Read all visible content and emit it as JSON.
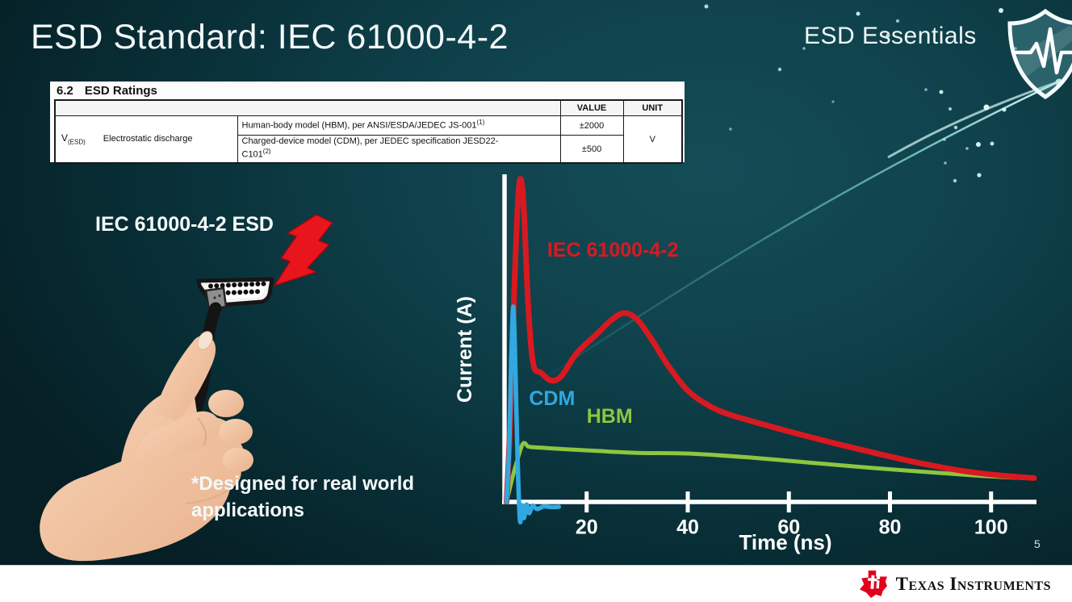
{
  "slide": {
    "title": "ESD Standard: IEC 61000-4-2",
    "brand_text": "ESD Essentials",
    "page_number": "5",
    "note_line1": "*Designed for real world",
    "note_line2": "applications",
    "illustration_label": "IEC 61000-4-2 ESD",
    "logo_company": "Texas Instruments"
  },
  "ratings_table": {
    "section_number": "6.2",
    "section_title": "ESD Ratings",
    "header_value": "VALUE",
    "header_unit": "UNIT",
    "symbol": "V",
    "symbol_sub": "(ESD)",
    "parameter": "Electrostatic discharge",
    "rows": [
      {
        "description": "Human-body model (HBM), per ANSI/ESDA/JEDEC JS-001",
        "footnote_ref": "(1)",
        "value": "±2000"
      },
      {
        "description": "Charged-device model (CDM), per JEDEC specification JESD22-C101",
        "footnote_ref": "(2)",
        "value": "±500"
      }
    ],
    "unit": "V"
  },
  "chart_data": {
    "type": "line",
    "title": "",
    "xlabel": "Time (ns)",
    "ylabel": "Current (A)",
    "x_ticks": [
      20,
      40,
      60,
      80,
      100
    ],
    "xlim": [
      0,
      110
    ],
    "ylim": [
      0,
      1
    ],
    "grid": false,
    "legend_position": "inline-labels",
    "axis_color": "#ffffff",
    "series": [
      {
        "name": "IEC 61000-4-2",
        "color": "#d91920",
        "width": 7,
        "z": 2,
        "label_t": 12.2,
        "label_v": 0.76,
        "points": [
          [
            4.15,
            0
          ],
          [
            4.8,
            0.22
          ],
          [
            5.6,
            0.62
          ],
          [
            6.4,
            0.93
          ],
          [
            7,
            1.0
          ],
          [
            7.6,
            0.9
          ],
          [
            8.4,
            0.62
          ],
          [
            9.4,
            0.43
          ],
          [
            11,
            0.4
          ],
          [
            13,
            0.376
          ],
          [
            15,
            0.39
          ],
          [
            18,
            0.46
          ],
          [
            22,
            0.52
          ],
          [
            25,
            0.565
          ],
          [
            27.5,
            0.585
          ],
          [
            30,
            0.565
          ],
          [
            33,
            0.5
          ],
          [
            36,
            0.425
          ],
          [
            40,
            0.345
          ],
          [
            44,
            0.3
          ],
          [
            48,
            0.272
          ],
          [
            55,
            0.24
          ],
          [
            62,
            0.21
          ],
          [
            70,
            0.178
          ],
          [
            78,
            0.148
          ],
          [
            86,
            0.12
          ],
          [
            94,
            0.097
          ],
          [
            100,
            0.085
          ],
          [
            105,
            0.078
          ],
          [
            108.5,
            0.074
          ]
        ]
      },
      {
        "name": "CDM",
        "color": "#31a8e0",
        "width": 5.5,
        "z": 3,
        "label_t": 8.6,
        "label_v": 0.3,
        "points": [
          [
            4.15,
            0
          ],
          [
            4.7,
            0.18
          ],
          [
            5.1,
            0.45
          ],
          [
            5.5,
            0.605
          ],
          [
            5.9,
            0.42
          ],
          [
            6.3,
            0.15
          ],
          [
            6.8,
            -0.057
          ],
          [
            7.2,
            -0.01
          ],
          [
            7.6,
            -0.05
          ],
          [
            8.1,
            -0.008
          ],
          [
            8.6,
            -0.035
          ],
          [
            9.3,
            -0.012
          ],
          [
            10.2,
            -0.022
          ],
          [
            11.5,
            -0.014
          ],
          [
            13,
            -0.016
          ],
          [
            14.5,
            -0.015
          ]
        ]
      },
      {
        "name": "HBM",
        "color": "#8dc63f",
        "width": 5,
        "z": 1,
        "label_t": 20,
        "label_v": 0.245,
        "points": [
          [
            4.15,
            0
          ],
          [
            5,
            0.055
          ],
          [
            6,
            0.115
          ],
          [
            7.2,
            0.175
          ],
          [
            7.8,
            0.182
          ],
          [
            8.3,
            0.173
          ],
          [
            9,
            0.17
          ],
          [
            12,
            0.167
          ],
          [
            16,
            0.163
          ],
          [
            22,
            0.158
          ],
          [
            30,
            0.152
          ],
          [
            40,
            0.15
          ],
          [
            52,
            0.138
          ],
          [
            64,
            0.122
          ],
          [
            76,
            0.106
          ],
          [
            88,
            0.092
          ],
          [
            97,
            0.082
          ],
          [
            104,
            0.076
          ],
          [
            108.5,
            0.073
          ]
        ]
      }
    ]
  },
  "background": {
    "base_colors": [
      "#144d57",
      "#0f414b",
      "#093038",
      "#051f25"
    ],
    "streak_color": "#7de8e4",
    "stars": [
      [
        1063,
        17,
        2.5,
        0.9
      ],
      [
        1112,
        26,
        2,
        0.7
      ],
      [
        1100,
        44,
        2.5,
        0.85
      ],
      [
        1240,
        13,
        3,
        0.95
      ],
      [
        1166,
        114,
        2.5,
        0.9
      ],
      [
        1147,
        111,
        1.8,
        0.6
      ],
      [
        1222,
        133,
        3.5,
        1
      ],
      [
        1177,
        135,
        2,
        0.75
      ],
      [
        1244,
        136,
        2.5,
        0.9
      ],
      [
        1184,
        158,
        2.2,
        0.8
      ],
      [
        1170,
        173,
        1.8,
        0.6
      ],
      [
        1212,
        179,
        3,
        0.95
      ],
      [
        1229,
        178,
        2.5,
        0.85
      ],
      [
        1198,
        184,
        1.8,
        0.65
      ],
      [
        1171,
        202,
        1.8,
        0.6
      ],
      [
        1213,
        217,
        2.6,
        0.9
      ],
      [
        1183,
        224,
        2.2,
        0.75
      ],
      [
        996,
        60,
        1.8,
        0.6
      ],
      [
        966,
        86,
        2.2,
        0.75
      ],
      [
        905,
        160,
        1.8,
        0.55
      ],
      [
        1312,
        102,
        4.5,
        1
      ],
      [
        1032,
        126,
        1.6,
        0.5
      ],
      [
        1258,
        60,
        1.8,
        0.6
      ],
      [
        875,
        8,
        2.5,
        0.8
      ]
    ]
  },
  "footer": {
    "bar_color": "#ffffff",
    "logo_color": "#e2001a"
  }
}
